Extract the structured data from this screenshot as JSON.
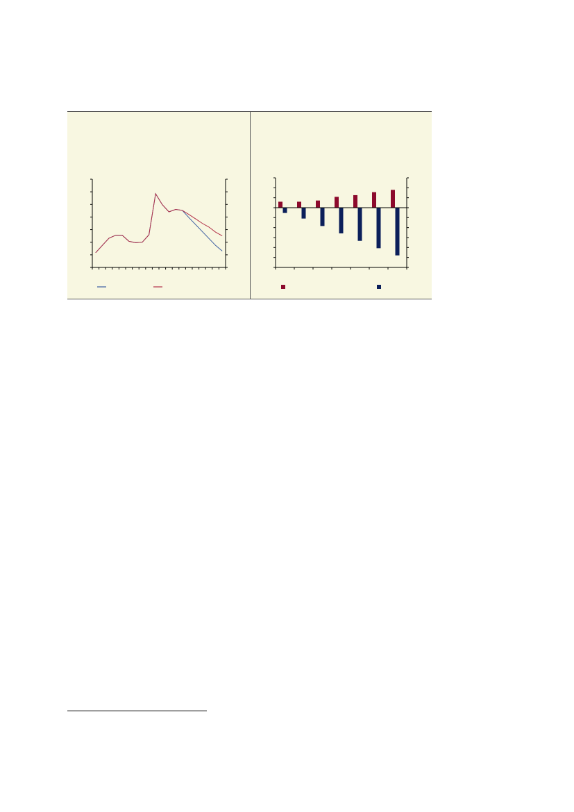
{
  "colors": {
    "panel_background": "#f8f7e1",
    "line_series_1": "#3a5ca0",
    "line_series_2": "#b23048",
    "bar_series_1": "#8c0a2c",
    "bar_series_2": "#0b1f5a"
  },
  "chart_data": [
    {
      "type": "line",
      "title": "",
      "xlabel": "",
      "ylabel": "",
      "ylim": [
        0,
        7
      ],
      "y_tick_count": 8,
      "x_tick_count": 21,
      "grid": false,
      "legend": "bottom",
      "x": [
        1,
        2,
        3,
        4,
        5,
        6,
        7,
        8,
        9,
        10,
        11,
        12,
        13,
        14,
        15,
        16,
        17,
        18,
        19,
        20
      ],
      "series": [
        {
          "values": [
            1.17,
            1.75,
            2.32,
            2.55,
            2.55,
            2.07,
            1.96,
            2.0,
            2.59,
            5.85,
            4.98,
            4.41,
            4.6,
            4.53,
            3.95,
            3.4,
            2.85,
            2.3,
            1.75,
            1.3
          ]
        },
        {
          "values": [
            1.17,
            1.75,
            2.32,
            2.55,
            2.55,
            2.07,
            1.96,
            2.0,
            2.59,
            5.85,
            4.98,
            4.41,
            4.6,
            4.53,
            4.2,
            3.85,
            3.5,
            3.2,
            2.8,
            2.5
          ]
        }
      ]
    },
    {
      "type": "bar",
      "title": "",
      "xlabel": "",
      "ylabel": "",
      "ylim": [
        -6,
        3
      ],
      "y_tick_count": 10,
      "grid": false,
      "legend": "bottom",
      "categories": [
        "",
        "",
        "",
        "",
        "",
        "",
        ""
      ],
      "series": [
        {
          "values": [
            0.6,
            0.6,
            0.72,
            1.09,
            1.26,
            1.56,
            1.79
          ]
        },
        {
          "values": [
            -0.53,
            -1.09,
            -1.84,
            -2.58,
            -3.33,
            -4.07,
            -4.79
          ]
        }
      ]
    }
  ]
}
